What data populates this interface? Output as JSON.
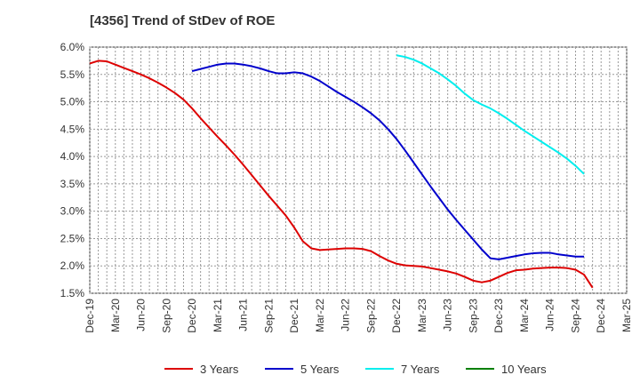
{
  "chart_data": {
    "type": "line",
    "title": "[4356]  Trend of StDev of ROE",
    "xlabel": "",
    "ylabel": "",
    "x_tick_labels": [
      "Dec-19",
      "Mar-20",
      "Jun-20",
      "Sep-20",
      "Dec-20",
      "Mar-21",
      "Jun-21",
      "Sep-21",
      "Dec-21",
      "Mar-22",
      "Jun-22",
      "Sep-22",
      "Dec-22",
      "Mar-23",
      "Jun-23",
      "Sep-23",
      "Dec-23",
      "Mar-24",
      "Jun-24",
      "Sep-24",
      "Dec-24",
      "Mar-25"
    ],
    "y_tick_labels": [
      "1.5%",
      "2.0%",
      "2.5%",
      "3.0%",
      "3.5%",
      "4.0%",
      "4.5%",
      "5.0%",
      "5.5%",
      "6.0%"
    ],
    "ylim": [
      1.5,
      6.0
    ],
    "grid": true,
    "legend_position": "bottom",
    "series": [
      {
        "name": "3 Years",
        "color": "#dd0000",
        "start_index": 0,
        "values": [
          5.7,
          5.75,
          5.74,
          5.68,
          5.62,
          5.56,
          5.5,
          5.43,
          5.35,
          5.26,
          5.16,
          5.04,
          4.88,
          4.7,
          4.53,
          4.36,
          4.2,
          4.03,
          3.85,
          3.66,
          3.47,
          3.28,
          3.1,
          2.92,
          2.7,
          2.45,
          2.32,
          2.29,
          2.3,
          2.31,
          2.32,
          2.32,
          2.31,
          2.27,
          2.18,
          2.1,
          2.04,
          2.01,
          2.0,
          1.99,
          1.96,
          1.93,
          1.9,
          1.86,
          1.8,
          1.73,
          1.7,
          1.73,
          1.8,
          1.87,
          1.92,
          1.93,
          1.95,
          1.96,
          1.97,
          1.97,
          1.96,
          1.93,
          1.84,
          1.6
        ]
      },
      {
        "name": "5 Years",
        "color": "#0000cc",
        "start_index": 12,
        "values": [
          5.56,
          5.6,
          5.64,
          5.68,
          5.7,
          5.7,
          5.68,
          5.65,
          5.61,
          5.56,
          5.52,
          5.52,
          5.54,
          5.52,
          5.46,
          5.38,
          5.28,
          5.18,
          5.09,
          5.0,
          4.9,
          4.79,
          4.66,
          4.5,
          4.32,
          4.11,
          3.89,
          3.67,
          3.45,
          3.24,
          3.03,
          2.84,
          2.66,
          2.48,
          2.3,
          2.14,
          2.12,
          2.15,
          2.18,
          2.21,
          2.23,
          2.24,
          2.24,
          2.21,
          2.19,
          2.17,
          2.17
        ]
      },
      {
        "name": "7 Years",
        "color": "#00eeee",
        "start_index": 36,
        "values": [
          5.85,
          5.82,
          5.77,
          5.7,
          5.61,
          5.52,
          5.41,
          5.29,
          5.15,
          5.03,
          4.95,
          4.88,
          4.79,
          4.69,
          4.58,
          4.47,
          4.37,
          4.27,
          4.17,
          4.07,
          3.96,
          3.83,
          3.68
        ]
      },
      {
        "name": "10 Years",
        "color": "#008000",
        "start_index": 0,
        "values": []
      }
    ]
  }
}
